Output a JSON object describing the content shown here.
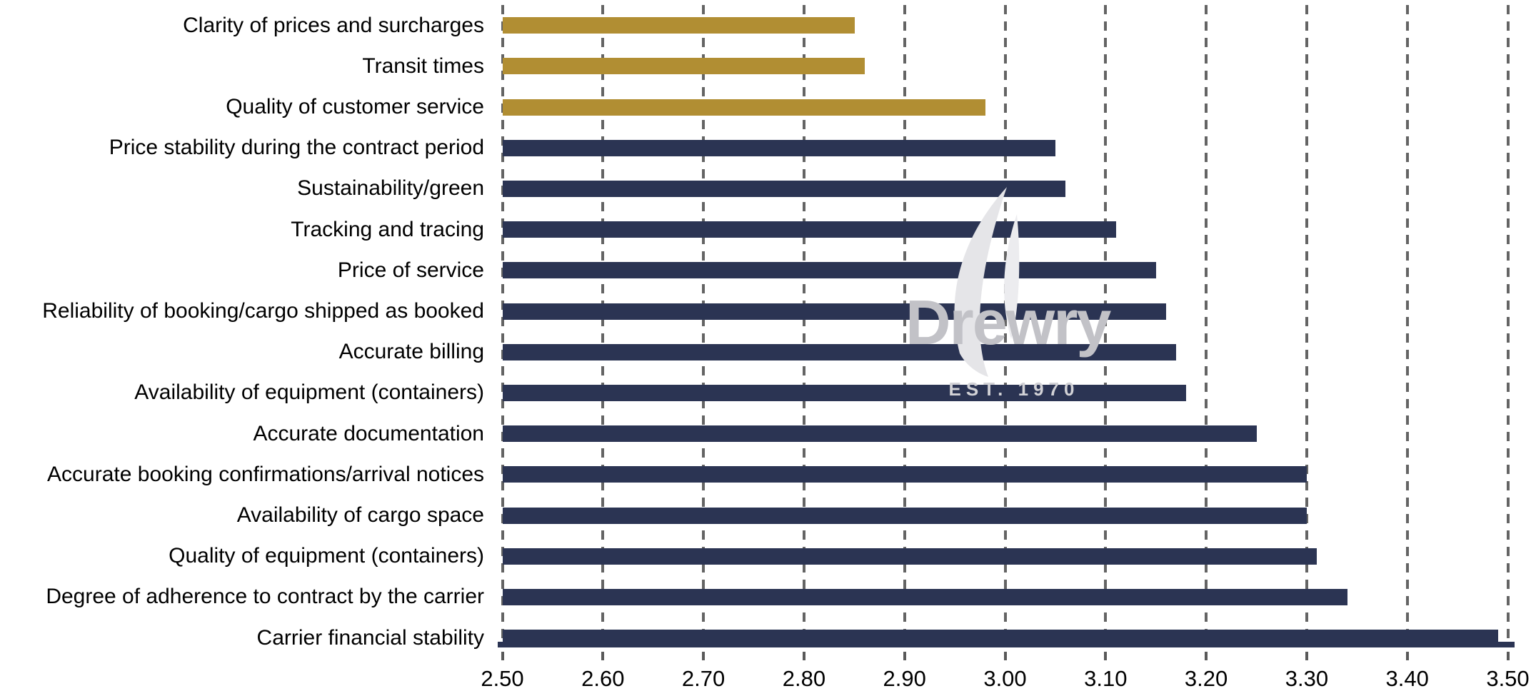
{
  "chart_data": {
    "type": "bar",
    "orientation": "horizontal",
    "title": "",
    "xlabel": "",
    "ylabel": "",
    "categories": [
      "Clarity of prices and surcharges",
      "Transit times",
      "Quality of customer service",
      "Price stability during the contract period",
      "Sustainability/green",
      "Tracking and tracing",
      "Price of service",
      "Reliability of booking/cargo shipped as booked",
      "Accurate billing",
      "Availability of equipment (containers)",
      "Accurate documentation",
      "Accurate booking confirmations/arrival notices",
      "Availability of cargo space",
      "Quality of equipment (containers)",
      "Degree of adherence to contract by the carrier",
      "Carrier financial stability"
    ],
    "values": [
      2.85,
      2.86,
      2.98,
      3.05,
      3.06,
      3.11,
      3.15,
      3.16,
      3.17,
      3.18,
      3.25,
      3.3,
      3.3,
      3.31,
      3.34,
      3.49
    ],
    "highlight_count": 3,
    "xlim": [
      2.5,
      3.5
    ],
    "x_ticks": [
      "2.50",
      "2.60",
      "2.70",
      "2.80",
      "2.90",
      "3.00",
      "3.10",
      "3.20",
      "3.30",
      "3.40",
      "3.50"
    ],
    "grid": "vertical-dashed",
    "legend": "none",
    "colors": {
      "bar_default": "#2B3453",
      "bar_highlight": "#B18E33",
      "gridline": "#646464",
      "tick": "#595959",
      "axis_line": "#2B3453",
      "label_text": "#000000"
    }
  },
  "watermark": {
    "brand": "Drewry",
    "subtitle": "EST. 1970",
    "brand_color": "#C2C2C7",
    "subtitle_color": "#D2D2D6",
    "flame_color": "#E5E5E8",
    "flame_color_light": "#ECECEF"
  }
}
